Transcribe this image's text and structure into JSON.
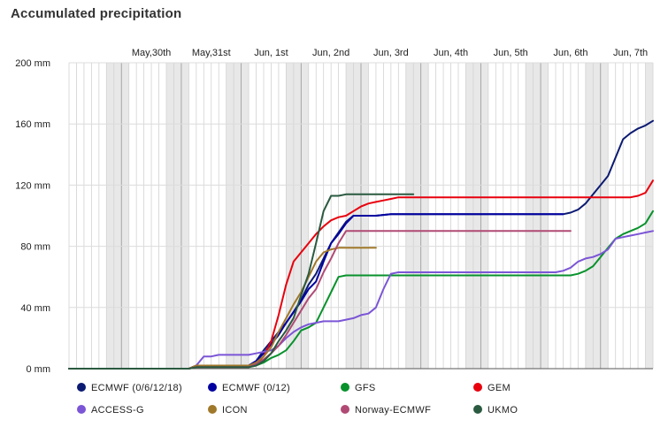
{
  "chart_data": {
    "type": "line",
    "title": "Accumulated precipitation",
    "xlabel": "",
    "ylabel": "",
    "y_unit": "mm",
    "ylim": [
      0,
      200
    ],
    "y_ticks": [
      0,
      40,
      80,
      120,
      160,
      200
    ],
    "y_tick_labels": [
      "0 mm",
      "40 mm",
      "80 mm",
      "120 mm",
      "160 mm",
      "200 mm"
    ],
    "x_unit": "hours since start of plotted period (3-hour steps)",
    "xlim": [
      0,
      234
    ],
    "x_ticks": [
      {
        "label": "May,30th",
        "x": 33
      },
      {
        "label": "May,31st",
        "x": 57
      },
      {
        "label": "Jun, 1st",
        "x": 81
      },
      {
        "label": "Jun, 2nd",
        "x": 105
      },
      {
        "label": "Jun, 3rd",
        "x": 129
      },
      {
        "label": "Jun, 4th",
        "x": 153
      },
      {
        "label": "Jun, 5th",
        "x": 177
      },
      {
        "label": "Jun, 6th",
        "x": 201
      },
      {
        "label": "Jun, 7th",
        "x": 225
      }
    ],
    "grid": true,
    "legend_position": "bottom",
    "series": [
      {
        "name": "ECMWF (0/6/12/18)",
        "color": "#0b1a72",
        "x": [
          0,
          48,
          51,
          72,
          75,
          78,
          81,
          84,
          87,
          90,
          93,
          96,
          99,
          102,
          105,
          108,
          111,
          114,
          117,
          120,
          123,
          129,
          138,
          147,
          165,
          180,
          195,
          198,
          201,
          204,
          207,
          210,
          213,
          216,
          219,
          222,
          225,
          228,
          231,
          234
        ],
        "y": [
          0,
          0,
          2,
          2,
          5,
          12,
          18,
          24,
          30,
          37,
          45,
          55,
          62,
          72,
          82,
          89,
          96,
          100,
          100,
          100,
          100,
          101,
          101,
          101,
          101,
          101,
          101,
          101,
          102,
          104,
          108,
          114,
          120,
          126,
          138,
          150,
          154,
          157,
          159,
          162
        ]
      },
      {
        "name": "ECMWF (0/12)",
        "color": "#0000a0",
        "x": [
          0,
          48,
          51,
          72,
          75,
          78,
          81,
          84,
          87,
          90,
          93,
          96,
          99,
          102,
          105,
          108,
          111,
          114,
          117,
          120,
          123,
          129,
          138,
          147,
          165,
          180,
          195,
          198
        ],
        "y": [
          0,
          0,
          2,
          2,
          5,
          10,
          16,
          22,
          30,
          37,
          44,
          52,
          57,
          70,
          82,
          88,
          95,
          100,
          100,
          100,
          100,
          101,
          101,
          101,
          101,
          101,
          101,
          101
        ]
      },
      {
        "name": "GFS",
        "color": "#08922c",
        "x": [
          0,
          48,
          51,
          72,
          75,
          78,
          81,
          84,
          87,
          90,
          93,
          96,
          99,
          102,
          105,
          108,
          111,
          114,
          117,
          120,
          129,
          147,
          165,
          183,
          201,
          204,
          207,
          210,
          213,
          216,
          219,
          222,
          225,
          228,
          231,
          234
        ],
        "y": [
          0,
          0,
          1,
          1,
          2,
          4,
          7,
          9,
          12,
          18,
          25,
          27,
          30,
          40,
          50,
          60,
          61,
          61,
          61,
          61,
          61,
          61,
          61,
          61,
          61,
          62,
          64,
          67,
          73,
          79,
          85,
          88,
          90,
          92,
          95,
          103
        ]
      },
      {
        "name": "GEM",
        "color": "#e8000d",
        "x": [
          0,
          48,
          51,
          72,
          75,
          78,
          81,
          84,
          87,
          90,
          93,
          96,
          99,
          102,
          105,
          108,
          111,
          114,
          117,
          120,
          123,
          126,
          129,
          132,
          135,
          138,
          147,
          165,
          183,
          201,
          210,
          219,
          222,
          225,
          228,
          231,
          234
        ],
        "y": [
          0,
          0,
          2,
          2,
          3,
          8,
          18,
          35,
          55,
          70,
          76,
          82,
          88,
          93,
          97,
          99,
          100,
          103,
          106,
          108,
          109,
          110,
          111,
          112,
          112,
          112,
          112,
          112,
          112,
          112,
          112,
          112,
          112,
          112,
          113,
          115,
          123
        ]
      },
      {
        "name": "ACCESS-G",
        "color": "#7b55d6",
        "x": [
          0,
          48,
          51,
          54,
          57,
          60,
          63,
          66,
          69,
          72,
          75,
          78,
          81,
          84,
          87,
          90,
          93,
          96,
          99,
          102,
          105,
          108,
          111,
          114,
          117,
          120,
          123,
          126,
          129,
          132,
          135,
          138,
          147,
          165,
          183,
          189,
          195,
          198,
          201,
          204,
          207,
          210,
          213,
          216,
          219,
          222,
          225,
          228,
          231,
          234
        ],
        "y": [
          0,
          0,
          2,
          8,
          8,
          9,
          9,
          9,
          9,
          9,
          10,
          11,
          12,
          15,
          20,
          24,
          27,
          29,
          30,
          31,
          31,
          31,
          32,
          33,
          35,
          36,
          40,
          52,
          62,
          63,
          63,
          63,
          63,
          63,
          63,
          63,
          63,
          64,
          66,
          70,
          72,
          73,
          75,
          78,
          85,
          86,
          87,
          88,
          89,
          90
        ]
      },
      {
        "name": "ICON",
        "color": "#a0782a",
        "x": [
          0,
          48,
          51,
          72,
          75,
          78,
          81,
          84,
          87,
          90,
          93,
          96,
          99,
          102,
          105,
          108,
          111,
          114,
          117,
          120,
          123
        ],
        "y": [
          0,
          0,
          2,
          2,
          4,
          8,
          14,
          24,
          33,
          42,
          50,
          60,
          70,
          76,
          78,
          79,
          79,
          79,
          79,
          79,
          79
        ]
      },
      {
        "name": "Norway-ECMWF",
        "color": "#b04a74",
        "x": [
          0,
          48,
          51,
          72,
          75,
          78,
          81,
          84,
          87,
          90,
          93,
          96,
          99,
          102,
          105,
          108,
          111,
          114,
          117,
          120,
          129,
          147,
          165,
          183,
          195,
          201
        ],
        "y": [
          0,
          0,
          1,
          1,
          3,
          6,
          10,
          15,
          22,
          30,
          38,
          46,
          52,
          63,
          72,
          82,
          90,
          90,
          90,
          90,
          90,
          90,
          90,
          90,
          90,
          90
        ]
      },
      {
        "name": "UKMO",
        "color": "#2a5a40",
        "x": [
          0,
          48,
          51,
          72,
          75,
          78,
          81,
          84,
          87,
          90,
          93,
          96,
          99,
          102,
          105,
          108,
          111,
          114,
          117,
          120,
          126,
          132,
          138
        ],
        "y": [
          0,
          0,
          1,
          1,
          2,
          5,
          10,
          18,
          25,
          33,
          48,
          62,
          82,
          103,
          113,
          113,
          114,
          114,
          114,
          114,
          114,
          114,
          114
        ]
      }
    ]
  }
}
